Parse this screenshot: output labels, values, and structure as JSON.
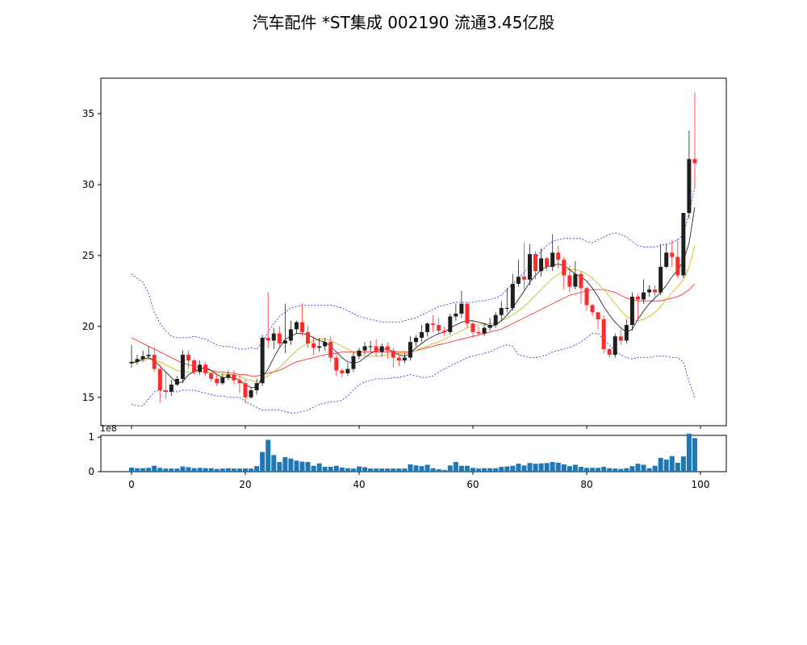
{
  "title": "汽车配件 *ST集成 002190 流通3.45亿股",
  "colors": {
    "up": "#ff2a2a",
    "down": "#1e1e1e",
    "ma_short": "#111111",
    "ma_mid": "#c8b400",
    "ma_long": "#ff1a1a",
    "boll": "#2222ee",
    "volume": "#1f77b4"
  },
  "chart_data": [
    {
      "type": "candlestick",
      "panel": "price",
      "ylim": [
        13,
        37.5
      ],
      "yticks": [
        "15",
        "20",
        "25",
        "30",
        "35"
      ],
      "x": [
        0,
        1,
        2,
        3,
        4,
        5,
        6,
        7,
        8,
        9,
        10,
        11,
        12,
        13,
        14,
        15,
        16,
        17,
        18,
        19,
        20,
        21,
        22,
        23,
        24,
        25,
        26,
        27,
        28,
        29,
        30,
        31,
        32,
        33,
        34,
        35,
        36,
        37,
        38,
        39,
        40,
        41,
        42,
        43,
        44,
        45,
        46,
        47,
        48,
        49,
        50,
        51,
        52,
        53,
        54,
        55,
        56,
        57,
        58,
        59,
        60,
        61,
        62,
        63,
        64,
        65,
        66,
        67,
        68,
        69,
        70,
        71,
        72,
        73,
        74,
        75,
        76,
        77,
        78,
        79,
        80,
        81,
        82,
        83,
        84,
        85,
        86,
        87,
        88,
        89,
        90,
        91,
        92,
        93,
        94,
        95,
        96,
        97,
        98,
        99
      ],
      "open": [
        17.4,
        17.5,
        17.7,
        17.9,
        18.0,
        17.0,
        15.5,
        15.4,
        15.9,
        16.3,
        18.0,
        17.6,
        16.8,
        17.3,
        16.7,
        16.3,
        16.0,
        16.4,
        16.6,
        16.2,
        16.0,
        15.0,
        15.5,
        16.0,
        19.2,
        19.0,
        19.5,
        18.8,
        19.0,
        19.8,
        20.3,
        19.6,
        18.8,
        18.5,
        18.6,
        18.9,
        17.8,
        16.9,
        16.7,
        17.0,
        17.9,
        18.3,
        18.6,
        18.6,
        18.2,
        18.6,
        18.3,
        17.8,
        17.6,
        17.8,
        18.9,
        19.2,
        19.6,
        20.2,
        20.1,
        19.7,
        19.6,
        20.7,
        20.9,
        21.6,
        20.2,
        19.6,
        19.5,
        19.9,
        20.1,
        20.8,
        21.3,
        21.3,
        23.0,
        23.5,
        23.3,
        25.1,
        23.9,
        24.8,
        24.2,
        25.2,
        24.7,
        23.6,
        22.8,
        23.7,
        22.7,
        21.5,
        21.0,
        20.5,
        18.4,
        18.0,
        19.3,
        19.0,
        20.1,
        22.1,
        21.9,
        22.4,
        22.6,
        22.4,
        24.2,
        25.2,
        24.9,
        23.6,
        28.0,
        31.8
      ],
      "close": [
        17.5,
        17.7,
        17.9,
        18.0,
        17.0,
        15.5,
        15.4,
        15.9,
        16.3,
        18.0,
        17.6,
        16.8,
        17.3,
        16.7,
        16.3,
        16.0,
        16.4,
        16.6,
        16.2,
        16.0,
        15.0,
        15.5,
        16.0,
        19.2,
        19.0,
        19.5,
        18.8,
        19.0,
        19.8,
        20.3,
        19.6,
        18.8,
        18.5,
        18.6,
        18.9,
        17.8,
        16.9,
        16.7,
        17.0,
        17.9,
        18.3,
        18.6,
        18.6,
        18.2,
        18.6,
        18.3,
        17.8,
        17.6,
        17.8,
        18.9,
        19.2,
        19.6,
        20.2,
        20.1,
        19.7,
        19.6,
        20.7,
        20.9,
        21.6,
        20.2,
        19.6,
        19.5,
        19.9,
        20.1,
        20.8,
        21.3,
        21.3,
        23.0,
        23.5,
        23.3,
        25.1,
        23.9,
        24.8,
        24.2,
        25.2,
        24.7,
        23.6,
        22.8,
        23.7,
        22.7,
        21.5,
        21.0,
        20.5,
        18.4,
        18.0,
        19.3,
        19.0,
        20.1,
        22.1,
        21.9,
        22.4,
        22.6,
        22.4,
        24.2,
        25.2,
        24.9,
        23.6,
        28.0,
        31.8,
        31.5
      ],
      "high": [
        18.7,
        18.0,
        18.3,
        18.6,
        18.5,
        17.3,
        16.8,
        16.2,
        16.5,
        18.3,
        18.3,
        17.7,
        17.6,
        17.5,
        16.8,
        16.6,
        16.7,
        16.9,
        16.9,
        16.5,
        16.3,
        15.7,
        16.3,
        19.4,
        22.4,
        19.9,
        20.0,
        21.6,
        20.4,
        20.4,
        21.6,
        20.0,
        19.3,
        19.2,
        19.2,
        19.3,
        18.0,
        17.0,
        17.4,
        18.2,
        18.5,
        18.9,
        19.0,
        19.1,
        18.8,
        18.9,
        18.5,
        18.0,
        18.1,
        19.3,
        19.4,
        20.1,
        20.3,
        20.8,
        20.6,
        20.0,
        20.9,
        21.6,
        22.5,
        21.7,
        20.4,
        20.0,
        20.2,
        20.6,
        21.0,
        21.8,
        22.7,
        23.7,
        24.7,
        25.9,
        25.8,
        25.3,
        25.5,
        24.9,
        26.5,
        25.7,
        24.9,
        24.3,
        24.6,
        23.9,
        22.8,
        21.6,
        21.0,
        20.8,
        18.5,
        19.5,
        19.8,
        20.5,
        22.4,
        22.3,
        23.3,
        22.9,
        22.9,
        25.8,
        25.8,
        26.1,
        26.2,
        28.0,
        33.8,
        36.5
      ],
      "low": [
        17.1,
        17.3,
        17.5,
        17.7,
        16.8,
        14.6,
        14.9,
        15.1,
        15.8,
        16.0,
        17.0,
        16.6,
        16.6,
        16.5,
        16.1,
        15.8,
        15.9,
        16.2,
        15.9,
        15.3,
        14.6,
        14.9,
        15.2,
        15.8,
        18.5,
        18.4,
        18.6,
        18.1,
        18.7,
        19.5,
        19.3,
        18.5,
        18.0,
        18.2,
        18.3,
        17.5,
        16.5,
        16.4,
        16.5,
        16.8,
        17.7,
        18.0,
        18.2,
        17.9,
        17.9,
        17.7,
        17.1,
        17.2,
        17.4,
        17.6,
        18.6,
        18.9,
        19.3,
        19.6,
        19.4,
        19.3,
        19.4,
        20.4,
        20.6,
        19.9,
        19.2,
        19.3,
        19.3,
        19.7,
        19.9,
        20.4,
        21.0,
        21.1,
        22.8,
        22.6,
        22.9,
        23.3,
        23.5,
        23.9,
        23.9,
        24.1,
        22.6,
        22.4,
        22.6,
        21.6,
        21.1,
        20.7,
        19.8,
        18.1,
        17.8,
        17.8,
        18.7,
        18.8,
        19.7,
        20.5,
        21.6,
        22.1,
        22.1,
        22.2,
        24.1,
        24.2,
        23.4,
        23.4,
        27.6,
        29.8
      ],
      "ma_short": [
        17.4,
        17.5,
        17.7,
        17.8,
        17.6,
        17.2,
        16.8,
        16.4,
        16.0,
        16.1,
        16.6,
        16.8,
        17.0,
        17.1,
        16.9,
        16.6,
        16.4,
        16.4,
        16.4,
        16.2,
        15.9,
        15.7,
        15.7,
        16.4,
        17.0,
        17.8,
        18.5,
        19.1,
        19.3,
        19.5,
        19.5,
        19.4,
        19.2,
        19.0,
        18.9,
        18.6,
        18.2,
        17.8,
        17.5,
        17.4,
        17.5,
        17.8,
        18.1,
        18.3,
        18.4,
        18.4,
        18.2,
        18.0,
        17.9,
        18.1,
        18.5,
        18.8,
        19.1,
        19.3,
        19.5,
        19.6,
        19.9,
        20.1,
        20.3,
        20.4,
        20.4,
        20.3,
        20.2,
        20.0,
        20.1,
        20.4,
        20.8,
        21.3,
        21.9,
        22.5,
        23.1,
        23.6,
        24.0,
        24.2,
        24.3,
        24.4,
        24.3,
        24.0,
        23.7,
        23.5,
        23.2,
        22.7,
        22.1,
        21.4,
        20.8,
        20.3,
        19.9,
        19.6,
        19.8,
        20.5,
        21.1,
        21.6,
        22.0,
        22.4,
        22.9,
        23.5,
        24.0,
        24.6,
        25.9,
        28.4
      ],
      "ma_mid": [
        17.5,
        17.6,
        17.6,
        17.7,
        17.6,
        17.5,
        17.3,
        17.1,
        16.9,
        16.8,
        16.8,
        16.8,
        16.8,
        16.8,
        16.7,
        16.7,
        16.6,
        16.6,
        16.6,
        16.5,
        16.3,
        16.2,
        16.1,
        16.3,
        16.5,
        16.8,
        17.1,
        17.5,
        17.9,
        18.3,
        18.6,
        18.8,
        19.0,
        19.1,
        19.1,
        19.0,
        18.8,
        18.6,
        18.4,
        18.2,
        18.0,
        17.9,
        17.9,
        17.9,
        17.9,
        18.0,
        18.0,
        18.1,
        18.1,
        18.2,
        18.3,
        18.5,
        18.6,
        18.8,
        18.9,
        19.1,
        19.3,
        19.5,
        19.7,
        19.9,
        20.0,
        20.1,
        20.2,
        20.2,
        20.2,
        20.4,
        20.6,
        20.8,
        21.1,
        21.4,
        21.8,
        22.2,
        22.6,
        23.0,
        23.4,
        23.7,
        23.9,
        24.0,
        24.0,
        23.9,
        23.7,
        23.4,
        23.0,
        22.6,
        22.1,
        21.6,
        21.1,
        20.7,
        20.5,
        20.4,
        20.5,
        20.7,
        21.0,
        21.4,
        21.9,
        22.4,
        22.8,
        23.3,
        24.2,
        25.7
      ],
      "ma_long": [
        19.2,
        19.0,
        18.8,
        18.6,
        18.4,
        18.2,
        18.0,
        17.8,
        17.6,
        17.4,
        17.3,
        17.2,
        17.1,
        17.0,
        16.9,
        16.8,
        16.8,
        16.7,
        16.7,
        16.6,
        16.6,
        16.5,
        16.5,
        16.6,
        16.7,
        16.8,
        16.9,
        17.1,
        17.3,
        17.5,
        17.6,
        17.7,
        17.8,
        17.9,
        18.0,
        18.1,
        18.1,
        18.2,
        18.2,
        18.2,
        18.2,
        18.2,
        18.2,
        18.2,
        18.2,
        18.2,
        18.2,
        18.2,
        18.2,
        18.2,
        18.3,
        18.4,
        18.5,
        18.6,
        18.7,
        18.8,
        18.9,
        19.0,
        19.1,
        19.2,
        19.3,
        19.4,
        19.5,
        19.6,
        19.7,
        19.8,
        20.0,
        20.2,
        20.4,
        20.6,
        20.8,
        21.0,
        21.2,
        21.4,
        21.6,
        21.8,
        22.0,
        22.2,
        22.3,
        22.4,
        22.5,
        22.6,
        22.6,
        22.6,
        22.5,
        22.4,
        22.2,
        22.0,
        21.9,
        21.8,
        21.8,
        21.8,
        21.8,
        21.8,
        21.9,
        22.0,
        22.1,
        22.3,
        22.6,
        23.0
      ],
      "boll_upper": [
        23.7,
        23.4,
        23.1,
        22.3,
        21.0,
        20.2,
        19.7,
        19.3,
        19.2,
        19.2,
        19.2,
        19.3,
        19.2,
        19.1,
        18.9,
        18.7,
        18.6,
        18.6,
        18.5,
        18.4,
        18.4,
        18.5,
        18.4,
        18.9,
        19.6,
        20.2,
        20.7,
        21.0,
        21.3,
        21.4,
        21.5,
        21.5,
        21.5,
        21.5,
        21.5,
        21.5,
        21.4,
        21.3,
        21.1,
        20.9,
        20.7,
        20.6,
        20.5,
        20.4,
        20.3,
        20.3,
        20.3,
        20.3,
        20.4,
        20.5,
        20.6,
        20.8,
        21.0,
        21.2,
        21.4,
        21.5,
        21.6,
        21.7,
        21.7,
        21.7,
        21.7,
        21.8,
        21.8,
        21.9,
        22.0,
        22.2,
        22.6,
        23.0,
        23.4,
        23.8,
        24.3,
        24.8,
        25.3,
        25.7,
        26.0,
        26.1,
        26.2,
        26.2,
        26.2,
        26.2,
        26.0,
        25.9,
        26.1,
        26.3,
        26.5,
        26.6,
        26.5,
        26.3,
        26.0,
        25.7,
        25.6,
        25.6,
        25.6,
        25.7,
        25.8,
        25.9,
        26.1,
        26.5,
        28.0,
        29.8
      ],
      "boll_lower": [
        14.5,
        14.4,
        14.4,
        14.9,
        15.4,
        15.5,
        15.4,
        15.4,
        15.4,
        15.5,
        15.5,
        15.5,
        15.4,
        15.3,
        15.2,
        15.1,
        15.1,
        15.0,
        15.0,
        15.0,
        14.7,
        14.5,
        14.3,
        14.1,
        14.1,
        14.1,
        14.1,
        14.0,
        13.9,
        13.9,
        14.0,
        14.1,
        14.3,
        14.5,
        14.6,
        14.7,
        14.7,
        14.8,
        15.1,
        15.5,
        15.9,
        16.1,
        16.2,
        16.3,
        16.3,
        16.3,
        16.4,
        16.4,
        16.5,
        16.6,
        16.5,
        16.4,
        16.4,
        16.5,
        16.8,
        17.0,
        17.2,
        17.4,
        17.6,
        17.8,
        17.9,
        18.0,
        18.1,
        18.2,
        18.4,
        18.6,
        18.7,
        18.6,
        18.0,
        17.9,
        17.8,
        17.8,
        17.9,
        18.0,
        18.2,
        18.3,
        18.4,
        18.5,
        18.7,
        18.9,
        19.2,
        19.5,
        19.5,
        19.1,
        18.7,
        18.3,
        18.0,
        17.8,
        17.7,
        17.8,
        17.8,
        17.8,
        17.9,
        17.9,
        17.9,
        17.8,
        17.8,
        17.5,
        16.1,
        15.0
      ]
    },
    {
      "type": "bar",
      "panel": "volume",
      "ylim": [
        0,
        105000000.0
      ],
      "yticks": [
        "0",
        "1"
      ],
      "offset_text": "1e8",
      "xticks": [
        "0",
        "20",
        "40",
        "60",
        "80",
        "100"
      ],
      "values": [
        12000000,
        10000000,
        10000000,
        11000000,
        17000000,
        11000000,
        9000000,
        9000000,
        9000000,
        15000000,
        13000000,
        10000000,
        11000000,
        10000000,
        10000000,
        8000000,
        9000000,
        10000000,
        9000000,
        9000000,
        9000000,
        9000000,
        16000000,
        57000000,
        92000000,
        48000000,
        28000000,
        42000000,
        38000000,
        32000000,
        29000000,
        28000000,
        17000000,
        24000000,
        14000000,
        14000000,
        17000000,
        12000000,
        10000000,
        9000000,
        15000000,
        13000000,
        9000000,
        9000000,
        9000000,
        9000000,
        9000000,
        9000000,
        9000000,
        21000000,
        18000000,
        16000000,
        20000000,
        10000000,
        7000000,
        5000000,
        18000000,
        28000000,
        17000000,
        17000000,
        11000000,
        9000000,
        10000000,
        10000000,
        10000000,
        14000000,
        15000000,
        17000000,
        23000000,
        18000000,
        25000000,
        23000000,
        24000000,
        25000000,
        28000000,
        26000000,
        21000000,
        16000000,
        20000000,
        14000000,
        11000000,
        11000000,
        11000000,
        14000000,
        10000000,
        9000000,
        8000000,
        10000000,
        16000000,
        23000000,
        20000000,
        10000000,
        17000000,
        40000000,
        35000000,
        45000000,
        26000000,
        44000000,
        110000000,
        97000000
      ]
    }
  ]
}
